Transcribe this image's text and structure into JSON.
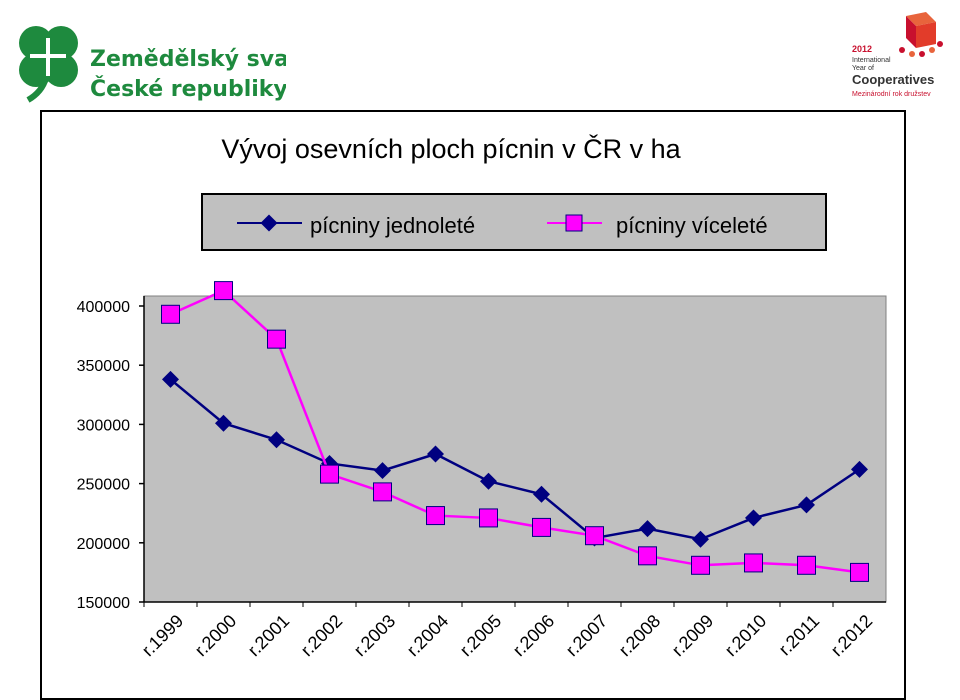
{
  "logos": {
    "left": {
      "line1": "Zemědělský svaz",
      "line2": "České republiky"
    },
    "right": {
      "year": "2012",
      "line1": "International",
      "line2": "Year of",
      "line3": "Cooperatives",
      "line4": "Mezinárodní rok družstev"
    }
  },
  "colors": {
    "series1": "#000080",
    "series2": "#ff00ff",
    "plot_bg": "#c0c0c0",
    "logo_green": "#1e8a3e",
    "logo_red": "#c8102e"
  },
  "chart_data": {
    "type": "line",
    "title": "Vývoj osevních ploch pícnin v ČR v ha",
    "categories": [
      "r.1999",
      "r.2000",
      "r.2001",
      "r.2002",
      "r.2003",
      "r.2004",
      "r.2005",
      "r.2006",
      "r.2007",
      "r.2008",
      "r.2009",
      "r.2010",
      "r.2011",
      "r.2012"
    ],
    "series": [
      {
        "name": "pícniny jednoleté",
        "marker": "diamond",
        "values": [
          338000,
          301000,
          287000,
          267000,
          261000,
          275000,
          252000,
          241000,
          204000,
          212000,
          203000,
          221000,
          232000,
          262000
        ]
      },
      {
        "name": "pícniny víceleté",
        "marker": "square",
        "values": [
          393000,
          413000,
          372000,
          258000,
          243000,
          223000,
          221000,
          213000,
          206000,
          189000,
          181000,
          183000,
          181000,
          175000
        ]
      }
    ],
    "ylim": [
      150000,
      400000
    ],
    "yticks": [
      150000,
      200000,
      250000,
      300000,
      350000,
      400000
    ],
    "legend": "top",
    "grid": false
  }
}
